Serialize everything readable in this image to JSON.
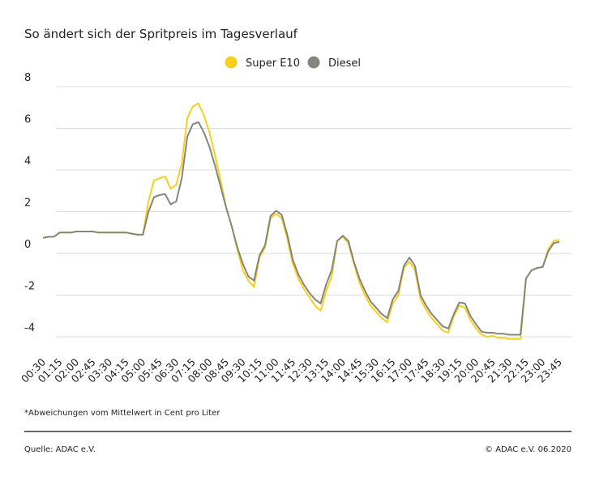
{
  "chart_data": {
    "type": "line",
    "title": "So ändert sich der Spritpreis im Tagesverlauf",
    "note": "*Abweichungen vom Mittelwert in Cent pro Liter",
    "source": "Quelle: ADAC e.V.",
    "copyright": "© ADAC e.V. 06.2020",
    "categories": [
      "00:30",
      null,
      null,
      "01:15",
      null,
      null,
      "02:00",
      null,
      null,
      "02:45",
      null,
      null,
      "03:30",
      null,
      null,
      "04:15",
      null,
      null,
      "05:00",
      null,
      null,
      "05:45",
      null,
      null,
      "06:30",
      null,
      null,
      "07:15",
      null,
      null,
      "08:00",
      null,
      null,
      "08:45",
      null,
      null,
      "09:30",
      null,
      null,
      "10:15",
      null,
      null,
      "11:00",
      null,
      null,
      "11:45",
      null,
      null,
      "12:30",
      null,
      null,
      "13:15",
      null,
      null,
      "14:00",
      null,
      null,
      "14:45",
      null,
      null,
      "15:30",
      null,
      null,
      "16:15",
      null,
      null,
      "17:00",
      null,
      null,
      "17:45",
      null,
      null,
      "18:30",
      null,
      null,
      "19:15",
      null,
      null,
      "20:00",
      null,
      null,
      "20:45",
      null,
      null,
      "21:30",
      null,
      null,
      "22:15",
      null,
      null,
      "23:00",
      null,
      null,
      "23:45"
    ],
    "series": [
      {
        "name": "Super E10",
        "color": "#f7cf1d",
        "values": [
          0.75,
          0.8,
          0.8,
          1.0,
          1.0,
          1.0,
          1.05,
          1.05,
          1.05,
          1.05,
          1.0,
          1.0,
          1.0,
          1.0,
          1.0,
          1.0,
          0.95,
          0.9,
          0.9,
          2.5,
          3.5,
          3.6,
          3.7,
          3.1,
          3.3,
          4.3,
          6.5,
          7.05,
          7.2,
          6.6,
          5.8,
          4.7,
          3.5,
          2.2,
          1.3,
          0.2,
          -0.8,
          -1.3,
          -1.6,
          -0.2,
          0.3,
          1.7,
          1.9,
          1.7,
          0.7,
          -0.5,
          -1.2,
          -1.7,
          -2.1,
          -2.5,
          -2.75,
          -1.8,
          -1.1,
          0.6,
          0.8,
          0.5,
          -0.5,
          -1.4,
          -2.0,
          -2.5,
          -2.8,
          -3.1,
          -3.3,
          -2.4,
          -2.0,
          -0.7,
          -0.4,
          -0.8,
          -2.2,
          -2.7,
          -3.1,
          -3.4,
          -3.7,
          -3.8,
          -3.0,
          -2.5,
          -2.6,
          -3.2,
          -3.6,
          -3.9,
          -4.0,
          -3.95,
          -4.05,
          -4.05,
          -4.1,
          -4.1,
          -4.1,
          -1.2,
          -0.8,
          -0.7,
          -0.65,
          0.2,
          0.6,
          0.65
        ]
      },
      {
        "name": "Diesel",
        "color": "#86857c",
        "values": [
          0.75,
          0.8,
          0.8,
          1.0,
          1.0,
          1.0,
          1.05,
          1.05,
          1.05,
          1.05,
          1.0,
          1.0,
          1.0,
          1.0,
          1.0,
          1.0,
          0.95,
          0.9,
          0.9,
          2.0,
          2.7,
          2.8,
          2.85,
          2.35,
          2.5,
          3.6,
          5.6,
          6.2,
          6.3,
          5.8,
          5.1,
          4.2,
          3.2,
          2.2,
          1.3,
          0.3,
          -0.5,
          -1.1,
          -1.3,
          -0.1,
          0.4,
          1.8,
          2.05,
          1.85,
          0.9,
          -0.3,
          -1.0,
          -1.5,
          -1.9,
          -2.2,
          -2.4,
          -1.5,
          -0.8,
          0.6,
          0.85,
          0.6,
          -0.4,
          -1.2,
          -1.8,
          -2.3,
          -2.6,
          -2.9,
          -3.1,
          -2.2,
          -1.8,
          -0.6,
          -0.2,
          -0.6,
          -2.0,
          -2.5,
          -2.9,
          -3.2,
          -3.5,
          -3.6,
          -2.9,
          -2.35,
          -2.4,
          -3.0,
          -3.4,
          -3.75,
          -3.8,
          -3.8,
          -3.85,
          -3.85,
          -3.9,
          -3.9,
          -3.9,
          -1.2,
          -0.8,
          -0.7,
          -0.65,
          0.1,
          0.5,
          0.55
        ]
      }
    ],
    "ylim": [
      -4.5,
      8
    ],
    "yticks": [
      8,
      6,
      4,
      2,
      0,
      -2,
      -4
    ],
    "grid": true
  }
}
